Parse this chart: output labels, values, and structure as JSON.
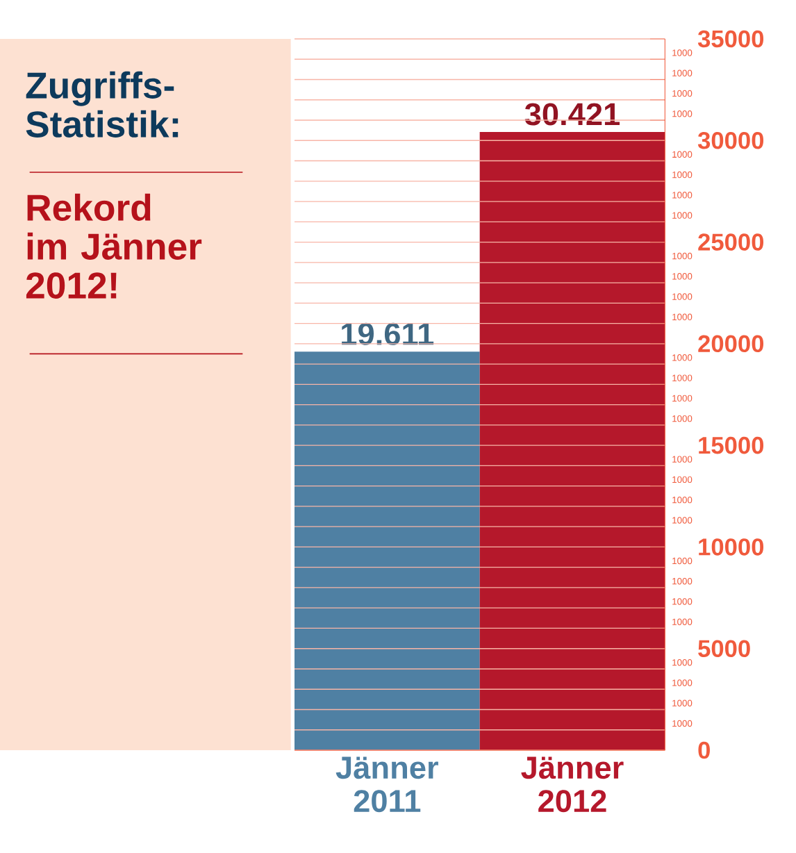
{
  "chart_data": {
    "type": "bar",
    "title": "Zugriffs-Statistik:",
    "subtitle": "Rekord im Jänner 2012!",
    "categories": [
      "Jänner 2011",
      "Jänner 2012"
    ],
    "values": [
      19611,
      30421
    ],
    "colors": [
      "#4f80a3",
      "#b5182b"
    ],
    "value_labels": [
      "19.611",
      "30.421"
    ],
    "ylim": [
      0,
      35000
    ],
    "yticks": [
      0,
      {
        "value": 1000,
        "label": null
      },
      {
        "value": 2000,
        "label": null
      },
      {
        "value": 3000,
        "label": null
      },
      {
        "value": 4000,
        "label": null
      },
      5000,
      {
        "value": 6000,
        "label": null
      },
      {
        "value": 7000,
        "label": null
      },
      {
        "value": 8000,
        "label": null
      },
      {
        "value": 9000,
        "label": null
      },
      10000,
      {
        "value": 11000,
        "label": null
      },
      {
        "value": 12000,
        "label": null
      },
      {
        "value": 13000,
        "label": null
      },
      {
        "value": 14000,
        "label": null
      },
      15000,
      {
        "value": 16000,
        "label": null
      },
      {
        "value": 17000,
        "label": null
      },
      {
        "value": 18000,
        "label": null
      },
      {
        "value": 19000,
        "label": null
      },
      20000,
      {
        "value": 21000,
        "label": null
      },
      {
        "value": 22000,
        "label": null
      },
      {
        "value": 23000,
        "label": null
      },
      {
        "value": 24000,
        "label": null
      },
      25000,
      {
        "value": 26000,
        "label": null
      },
      {
        "value": 27000,
        "label": null
      },
      {
        "value": 28000,
        "label": null
      },
      {
        "value": 29000,
        "label": null
      },
      30000,
      {
        "value": 31000,
        "label": null
      },
      {
        "value": 32000,
        "label": null
      },
      {
        "value": 33000,
        "label": null
      },
      {
        "value": 34000,
        "label": null
      },
      35000
    ],
    "annotations": [
      "1000",
      "1000",
      "1000",
      "1000",
      "1000",
      "1000",
      "1000",
      "1000",
      "1000",
      "1000",
      "1000",
      "1000",
      "1000",
      "1000",
      "1000",
      "1000",
      "1000",
      "1000",
      "1000",
      "1000",
      "1000",
      "1000",
      "1000",
      "1000",
      "1000",
      "1000",
      "1000",
      "1000"
    ],
    "grid": "y"
  }
}
